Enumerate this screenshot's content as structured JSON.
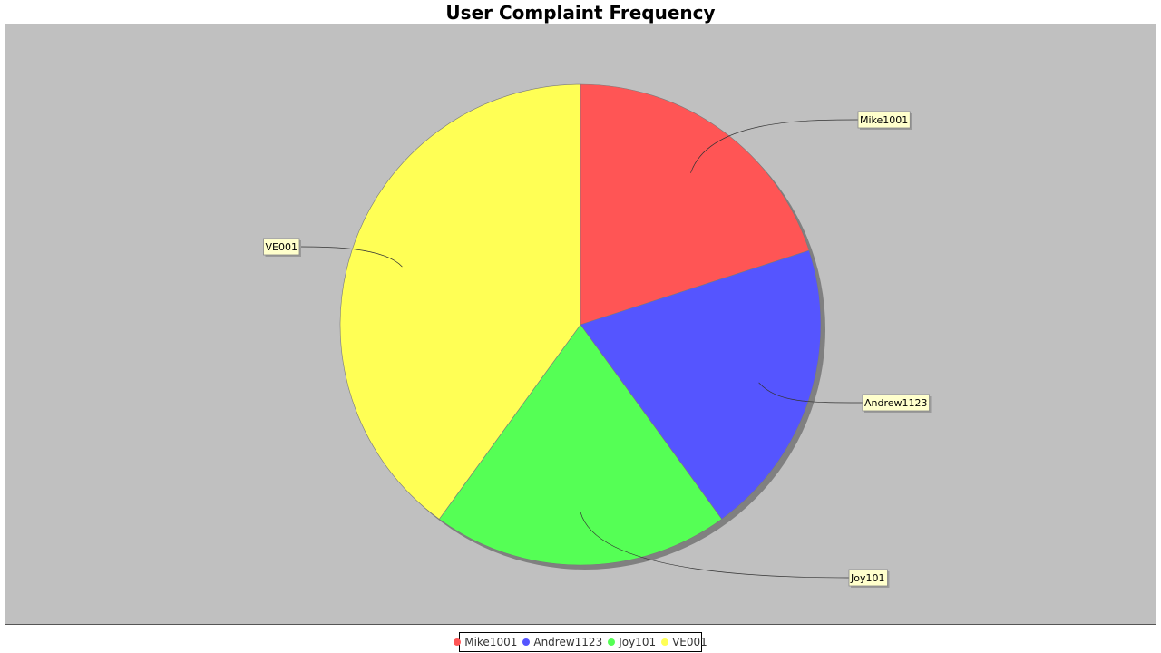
{
  "chart_data": {
    "type": "pie",
    "title": "User Complaint Frequency",
    "slices": [
      {
        "label": "Mike1001",
        "value": 20,
        "color": "#ff5555"
      },
      {
        "label": "Andrew1123",
        "value": 20,
        "color": "#5555ff"
      },
      {
        "label": "Joy101",
        "value": 20,
        "color": "#55ff55"
      },
      {
        "label": "VE001",
        "value": 40,
        "color": "#ffff55"
      }
    ],
    "legend_position": "bottom",
    "plot_background": "#c0c0c0",
    "label_background": "#ffffcc"
  }
}
